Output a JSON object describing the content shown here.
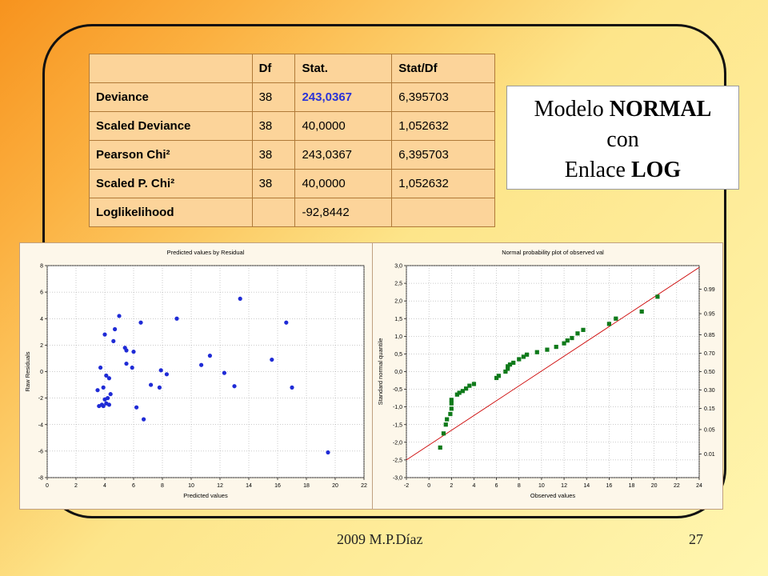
{
  "table": {
    "headers": [
      "",
      "Df",
      "Stat.",
      "Stat/Df"
    ],
    "rows": [
      {
        "label": "Deviance",
        "df": "38",
        "stat": "243,0367",
        "statdf": "6,395703"
      },
      {
        "label": "Scaled Deviance",
        "df": "38",
        "stat": "40,0000",
        "statdf": "1,052632"
      },
      {
        "label": "Pearson Chi²",
        "df": "38",
        "stat": "243,0367",
        "statdf": "6,395703"
      },
      {
        "label": "Scaled P. Chi²",
        "df": "38",
        "stat": "40,0000",
        "statdf": "1,052632"
      },
      {
        "label": "Loglikelihood",
        "df": "",
        "stat": "-92,8442",
        "statdf": ""
      }
    ]
  },
  "title_box": {
    "line1_a": "Modelo ",
    "line1_b": "NORMAL",
    "line2": "con",
    "line3_a": "Enlace ",
    "line3_b": "LOG"
  },
  "footer": {
    "left": "2009   M.P.Díaz",
    "page": "27"
  },
  "colors": {
    "residual_points": "#1f2bd6",
    "normal_points": "#0f7a1a",
    "reference_line": "#cc0000"
  },
  "chart_data": [
    {
      "type": "scatter",
      "title": "Predicted values by Residual",
      "xlabel": "Predicted values",
      "ylabel": "Raw Residuals",
      "xlim": [
        0,
        22
      ],
      "ylim": [
        -8,
        8
      ],
      "xticks": [
        0,
        2,
        4,
        6,
        8,
        10,
        12,
        14,
        16,
        18,
        20,
        22
      ],
      "yticks": [
        -8,
        -6,
        -4,
        -2,
        0,
        2,
        4,
        6,
        8
      ],
      "grid": true,
      "points": [
        [
          3.5,
          -1.4
        ],
        [
          3.6,
          -2.6
        ],
        [
          3.8,
          -2.5
        ],
        [
          3.7,
          0.3
        ],
        [
          3.9,
          -1.2
        ],
        [
          3.9,
          -2.6
        ],
        [
          4.0,
          -2.1
        ],
        [
          4.1,
          -2.4
        ],
        [
          4.2,
          -2.0
        ],
        [
          4.3,
          -2.5
        ],
        [
          4.4,
          -1.7
        ],
        [
          4.0,
          2.8
        ],
        [
          4.1,
          -0.3
        ],
        [
          4.3,
          -0.5
        ],
        [
          4.6,
          2.3
        ],
        [
          4.7,
          3.2
        ],
        [
          5.0,
          4.2
        ],
        [
          5.4,
          1.8
        ],
        [
          5.5,
          1.6
        ],
        [
          5.5,
          0.6
        ],
        [
          5.9,
          0.3
        ],
        [
          6.0,
          1.5
        ],
        [
          6.2,
          -2.7
        ],
        [
          6.5,
          3.7
        ],
        [
          6.7,
          -3.6
        ],
        [
          7.2,
          -1.0
        ],
        [
          7.8,
          -1.2
        ],
        [
          7.9,
          0.1
        ],
        [
          8.3,
          -0.2
        ],
        [
          9.0,
          4.0
        ],
        [
          10.7,
          0.5
        ],
        [
          11.3,
          1.2
        ],
        [
          12.3,
          -0.1
        ],
        [
          13.0,
          -1.1
        ],
        [
          13.4,
          5.5
        ],
        [
          15.6,
          0.9
        ],
        [
          16.6,
          3.7
        ],
        [
          17.0,
          -1.2
        ],
        [
          19.5,
          -6.1
        ]
      ]
    },
    {
      "type": "scatter",
      "title": "Normal probability plot of observed val",
      "xlabel": "Observed values",
      "ylabel": "Standard normal quantile",
      "xlim": [
        -2,
        24
      ],
      "ylim": [
        -3,
        3
      ],
      "xticks": [
        -2,
        0,
        2,
        4,
        6,
        8,
        10,
        12,
        14,
        16,
        18,
        20,
        22,
        24
      ],
      "yticks": [
        "-3,0",
        "-2,5",
        "-2,0",
        "-1,5",
        "-1,0",
        "-0,5",
        "0,0",
        "0,5",
        "1,0",
        "1,5",
        "2,0",
        "2,5",
        "3,0"
      ],
      "right_ticks": [
        {
          "label": "0.99",
          "q": 2.33
        },
        {
          "label": "0.95",
          "q": 1.64
        },
        {
          "label": "0.85",
          "q": 1.04
        },
        {
          "label": "0.70",
          "q": 0.52
        },
        {
          "label": "0.50",
          "q": 0.0
        },
        {
          "label": "0.30",
          "q": -0.52
        },
        {
          "label": "0.15",
          "q": -1.04
        },
        {
          "label": "0.05",
          "q": -1.64
        },
        {
          "label": "0.01",
          "q": -2.33
        }
      ],
      "reference_line": [
        [
          -2,
          -2.5
        ],
        [
          24,
          2.95
        ]
      ],
      "grid": true,
      "points": [
        [
          1.0,
          -2.15
        ],
        [
          1.3,
          -1.75
        ],
        [
          1.5,
          -1.5
        ],
        [
          1.6,
          -1.35
        ],
        [
          1.9,
          -1.2
        ],
        [
          2.0,
          -1.05
        ],
        [
          2.0,
          -0.9
        ],
        [
          2.0,
          -0.8
        ],
        [
          2.5,
          -0.65
        ],
        [
          2.7,
          -0.6
        ],
        [
          3.0,
          -0.55
        ],
        [
          3.3,
          -0.48
        ],
        [
          3.6,
          -0.4
        ],
        [
          4.0,
          -0.35
        ],
        [
          6.0,
          -0.18
        ],
        [
          6.2,
          -0.12
        ],
        [
          6.8,
          0.0
        ],
        [
          7.0,
          0.08
        ],
        [
          7.0,
          0.15
        ],
        [
          7.2,
          0.2
        ],
        [
          7.5,
          0.25
        ],
        [
          8.0,
          0.35
        ],
        [
          8.4,
          0.42
        ],
        [
          8.7,
          0.48
        ],
        [
          9.6,
          0.55
        ],
        [
          10.5,
          0.62
        ],
        [
          11.3,
          0.7
        ],
        [
          12.0,
          0.8
        ],
        [
          12.3,
          0.88
        ],
        [
          12.7,
          0.95
        ],
        [
          13.2,
          1.08
        ],
        [
          13.7,
          1.18
        ],
        [
          16.0,
          1.35
        ],
        [
          16.6,
          1.5
        ],
        [
          18.9,
          1.7
        ],
        [
          20.3,
          2.12
        ]
      ]
    }
  ]
}
